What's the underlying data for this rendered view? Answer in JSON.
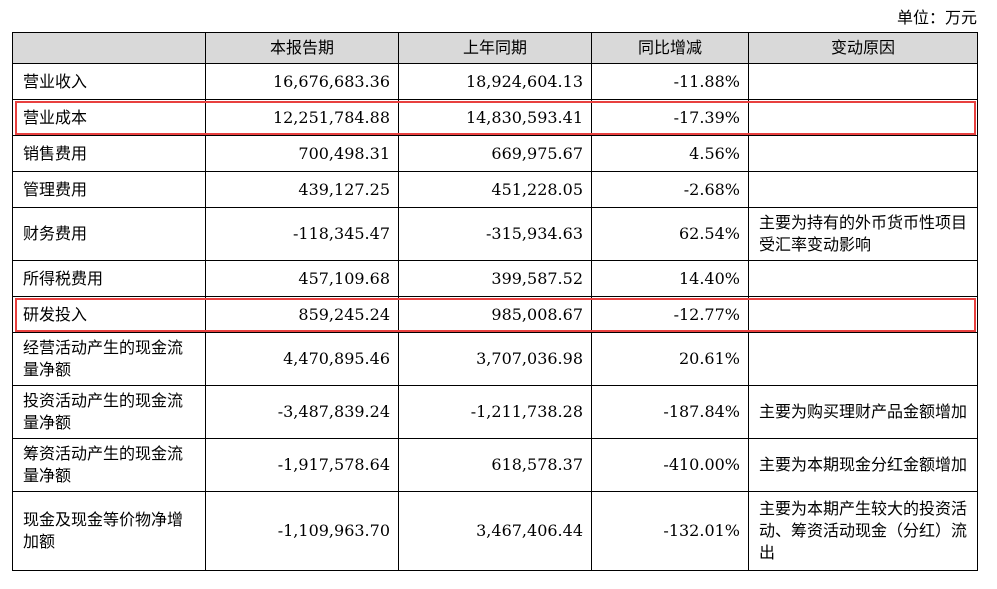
{
  "unit_label": "单位：万元",
  "headers": [
    "",
    "本报告期",
    "上年同期",
    "同比增减",
    "变动原因"
  ],
  "rows": [
    {
      "item": "营业收入",
      "current": "16,676,683.36",
      "prior": "18,924,604.13",
      "change": "-11.88%",
      "reason": "",
      "highlight": false
    },
    {
      "item": "营业成本",
      "current": "12,251,784.88",
      "prior": "14,830,593.41",
      "change": "-17.39%",
      "reason": "",
      "highlight": true
    },
    {
      "item": "销售费用",
      "current": "700,498.31",
      "prior": "669,975.67",
      "change": "4.56%",
      "reason": "",
      "highlight": false
    },
    {
      "item": "管理费用",
      "current": "439,127.25",
      "prior": "451,228.05",
      "change": "-2.68%",
      "reason": "",
      "highlight": false
    },
    {
      "item": "财务费用",
      "current": "-118,345.47",
      "prior": "-315,934.63",
      "change": "62.54%",
      "reason": "主要为持有的外币货币性项目受汇率变动影响",
      "highlight": false
    },
    {
      "item": "所得税费用",
      "current": "457,109.68",
      "prior": "399,587.52",
      "change": "14.40%",
      "reason": "",
      "highlight": false
    },
    {
      "item": "研发投入",
      "current": "859,245.24",
      "prior": "985,008.67",
      "change": "-12.77%",
      "reason": "",
      "highlight": true
    },
    {
      "item": "经营活动产生的现金流量净额",
      "current": "4,470,895.46",
      "prior": "3,707,036.98",
      "change": "20.61%",
      "reason": "",
      "highlight": false
    },
    {
      "item": "投资活动产生的现金流量净额",
      "current": "-3,487,839.24",
      "prior": "-1,211,738.28",
      "change": "-187.84%",
      "reason": "主要为购买理财产品金额增加",
      "highlight": false
    },
    {
      "item": "筹资活动产生的现金流量净额",
      "current": "-1,917,578.64",
      "prior": "618,578.37",
      "change": "-410.00%",
      "reason": "主要为本期现金分红金额增加",
      "highlight": false
    },
    {
      "item": "现金及现金等价物净增加额",
      "current": "-1,109,963.70",
      "prior": "3,467,406.44",
      "change": "-132.01%",
      "reason": "主要为本期产生较大的投资活动、筹资活动现金（分红）流出",
      "highlight": false
    }
  ],
  "highlight_color": "#e8403f"
}
